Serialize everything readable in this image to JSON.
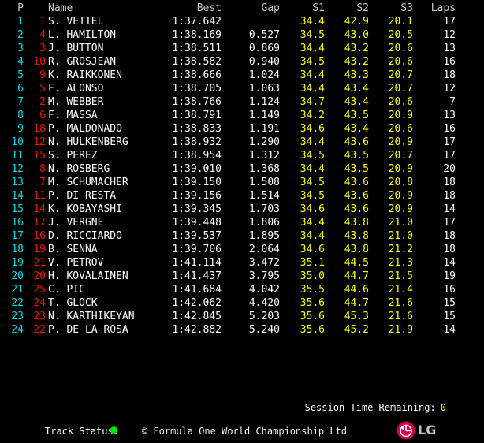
{
  "table": {
    "columns": [
      {
        "key": "pos",
        "label": "P"
      },
      {
        "key": "no",
        "label": ""
      },
      {
        "key": "name",
        "label": "Name"
      },
      {
        "key": "best",
        "label": "Best"
      },
      {
        "key": "gap",
        "label": "Gap"
      },
      {
        "key": "s1",
        "label": "S1"
      },
      {
        "key": "s2",
        "label": "S2"
      },
      {
        "key": "s3",
        "label": "S3"
      },
      {
        "key": "laps",
        "label": "Laps"
      }
    ],
    "rows": [
      {
        "pos": "1",
        "no": "1",
        "name": "S. VETTEL",
        "best": "1:37.642",
        "gap": "",
        "s1": "34.4",
        "s2": "42.9",
        "s3": "20.1",
        "laps": "17"
      },
      {
        "pos": "2",
        "no": "4",
        "name": "L. HAMILTON",
        "best": "1:38.169",
        "gap": "0.527",
        "s1": "34.5",
        "s2": "43.0",
        "s3": "20.5",
        "laps": "12"
      },
      {
        "pos": "3",
        "no": "3",
        "name": "J. BUTTON",
        "best": "1:38.511",
        "gap": "0.869",
        "s1": "34.4",
        "s2": "43.2",
        "s3": "20.6",
        "laps": "13"
      },
      {
        "pos": "4",
        "no": "10",
        "name": "R. GROSJEAN",
        "best": "1:38.582",
        "gap": "0.940",
        "s1": "34.5",
        "s2": "43.2",
        "s3": "20.6",
        "laps": "16"
      },
      {
        "pos": "5",
        "no": "9",
        "name": "K. RAIKKONEN",
        "best": "1:38.666",
        "gap": "1.024",
        "s1": "34.4",
        "s2": "43.3",
        "s3": "20.7",
        "laps": "18"
      },
      {
        "pos": "6",
        "no": "5",
        "name": "F. ALONSO",
        "best": "1:38.705",
        "gap": "1.063",
        "s1": "34.4",
        "s2": "43.4",
        "s3": "20.7",
        "laps": "12"
      },
      {
        "pos": "7",
        "no": "2",
        "name": "M. WEBBER",
        "best": "1:38.766",
        "gap": "1.124",
        "s1": "34.7",
        "s2": "43.4",
        "s3": "20.6",
        "laps": "7"
      },
      {
        "pos": "8",
        "no": "6",
        "name": "F. MASSA",
        "best": "1:38.791",
        "gap": "1.149",
        "s1": "34.2",
        "s2": "43.5",
        "s3": "20.9",
        "laps": "13"
      },
      {
        "pos": "9",
        "no": "18",
        "name": "P. MALDONADO",
        "best": "1:38.833",
        "gap": "1.191",
        "s1": "34.6",
        "s2": "43.4",
        "s3": "20.6",
        "laps": "16"
      },
      {
        "pos": "10",
        "no": "12",
        "name": "N. HULKENBERG",
        "best": "1:38.932",
        "gap": "1.290",
        "s1": "34.4",
        "s2": "43.6",
        "s3": "20.9",
        "laps": "17"
      },
      {
        "pos": "11",
        "no": "15",
        "name": "S. PEREZ",
        "best": "1:38.954",
        "gap": "1.312",
        "s1": "34.5",
        "s2": "43.5",
        "s3": "20.7",
        "laps": "17"
      },
      {
        "pos": "12",
        "no": "8",
        "name": "N. ROSBERG",
        "best": "1:39.010",
        "gap": "1.368",
        "s1": "34.4",
        "s2": "43.5",
        "s3": "20.9",
        "laps": "20"
      },
      {
        "pos": "13",
        "no": "7",
        "name": "M. SCHUMACHER",
        "best": "1:39.150",
        "gap": "1.508",
        "s1": "34.5",
        "s2": "43.6",
        "s3": "20.8",
        "laps": "18"
      },
      {
        "pos": "14",
        "no": "11",
        "name": "P. DI RESTA",
        "best": "1:39.156",
        "gap": "1.514",
        "s1": "34.5",
        "s2": "43.6",
        "s3": "20.9",
        "laps": "18"
      },
      {
        "pos": "15",
        "no": "14",
        "name": "K. KOBAYASHI",
        "best": "1:39.345",
        "gap": "1.703",
        "s1": "34.6",
        "s2": "43.6",
        "s3": "20.9",
        "laps": "14"
      },
      {
        "pos": "16",
        "no": "17",
        "name": "J. VERGNE",
        "best": "1:39.448",
        "gap": "1.806",
        "s1": "34.4",
        "s2": "43.8",
        "s3": "21.0",
        "laps": "17"
      },
      {
        "pos": "17",
        "no": "16",
        "name": "D. RICCIARDO",
        "best": "1:39.537",
        "gap": "1.895",
        "s1": "34.4",
        "s2": "43.8",
        "s3": "21.0",
        "laps": "18"
      },
      {
        "pos": "18",
        "no": "19",
        "name": "B. SENNA",
        "best": "1:39.706",
        "gap": "2.064",
        "s1": "34.6",
        "s2": "43.8",
        "s3": "21.2",
        "laps": "18"
      },
      {
        "pos": "19",
        "no": "21",
        "name": "V. PETROV",
        "best": "1:41.114",
        "gap": "3.472",
        "s1": "35.1",
        "s2": "44.5",
        "s3": "21.3",
        "laps": "14"
      },
      {
        "pos": "20",
        "no": "20",
        "name": "H. KOVALAINEN",
        "best": "1:41.437",
        "gap": "3.795",
        "s1": "35.0",
        "s2": "44.7",
        "s3": "21.5",
        "laps": "19"
      },
      {
        "pos": "21",
        "no": "25",
        "name": "C. PIC",
        "best": "1:41.684",
        "gap": "4.042",
        "s1": "35.5",
        "s2": "44.6",
        "s3": "21.4",
        "laps": "16"
      },
      {
        "pos": "22",
        "no": "24",
        "name": "T. GLOCK",
        "best": "1:42.062",
        "gap": "4.420",
        "s1": "35.6",
        "s2": "44.7",
        "s3": "21.6",
        "laps": "15"
      },
      {
        "pos": "23",
        "no": "23",
        "name": "N. KARTHIKEYAN",
        "best": "1:42.845",
        "gap": "5.203",
        "s1": "35.6",
        "s2": "45.3",
        "s3": "21.6",
        "laps": "15"
      },
      {
        "pos": "24",
        "no": "22",
        "name": "P. DE LA ROSA",
        "best": "1:42.882",
        "gap": "5.240",
        "s1": "35.6",
        "s2": "45.2",
        "s3": "21.9",
        "laps": "14"
      }
    ]
  },
  "session": {
    "label": "Session Time Remaining:",
    "value": "0"
  },
  "footer": {
    "track_status_label": "Track Status:",
    "track_status_dot": "green",
    "copyright": "© Formula One World Championship Ltd",
    "lg_wordmark": "LG"
  },
  "colors": {
    "background": "#000000",
    "position_cyan": "#00dce4",
    "car_number_red": "#ee1508",
    "sector_yellow": "#ffff00",
    "text_white": "#ffffff",
    "header_gray": "#c9c9c9",
    "status_green": "#00e600",
    "session_value_yellow": "#ffff00",
    "lg_magenta": "#d0004e",
    "lg_silver": "#c2c2c6"
  }
}
